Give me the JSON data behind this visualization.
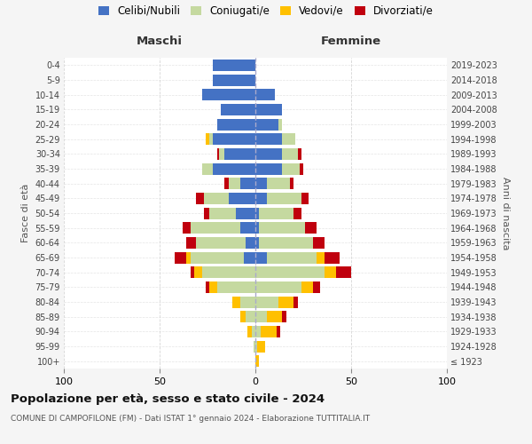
{
  "age_groups": [
    "100+",
    "95-99",
    "90-94",
    "85-89",
    "80-84",
    "75-79",
    "70-74",
    "65-69",
    "60-64",
    "55-59",
    "50-54",
    "45-49",
    "40-44",
    "35-39",
    "30-34",
    "25-29",
    "20-24",
    "15-19",
    "10-14",
    "5-9",
    "0-4"
  ],
  "birth_years": [
    "≤ 1923",
    "1924-1928",
    "1929-1933",
    "1934-1938",
    "1939-1943",
    "1944-1948",
    "1949-1953",
    "1954-1958",
    "1959-1963",
    "1964-1968",
    "1969-1973",
    "1974-1978",
    "1979-1983",
    "1984-1988",
    "1989-1993",
    "1994-1998",
    "1999-2003",
    "2004-2008",
    "2009-2013",
    "2014-2018",
    "2019-2023"
  ],
  "male_celibi": [
    0,
    0,
    0,
    0,
    0,
    0,
    0,
    6,
    5,
    8,
    10,
    14,
    8,
    22,
    16,
    22,
    20,
    18,
    28,
    22,
    22
  ],
  "male_coniugati": [
    0,
    1,
    2,
    5,
    8,
    20,
    28,
    28,
    26,
    26,
    14,
    13,
    6,
    6,
    3,
    2,
    0,
    0,
    0,
    0,
    0
  ],
  "male_vedovi": [
    0,
    0,
    2,
    3,
    4,
    4,
    4,
    2,
    0,
    0,
    0,
    0,
    0,
    0,
    0,
    2,
    0,
    0,
    0,
    0,
    0
  ],
  "male_divorziati": [
    0,
    0,
    0,
    0,
    0,
    2,
    2,
    6,
    5,
    4,
    3,
    4,
    2,
    0,
    1,
    0,
    0,
    0,
    0,
    0,
    0
  ],
  "female_celibi": [
    0,
    0,
    0,
    0,
    0,
    0,
    0,
    6,
    2,
    2,
    2,
    6,
    6,
    14,
    14,
    14,
    12,
    14,
    10,
    0,
    0
  ],
  "female_coniugati": [
    0,
    1,
    3,
    6,
    12,
    24,
    36,
    26,
    28,
    24,
    18,
    18,
    12,
    9,
    8,
    7,
    2,
    0,
    0,
    0,
    0
  ],
  "female_vedovi": [
    2,
    4,
    8,
    8,
    8,
    6,
    6,
    4,
    0,
    0,
    0,
    0,
    0,
    0,
    0,
    0,
    0,
    0,
    0,
    0,
    0
  ],
  "female_divorziati": [
    0,
    0,
    2,
    2,
    2,
    4,
    8,
    8,
    6,
    6,
    4,
    4,
    2,
    2,
    2,
    0,
    0,
    0,
    0,
    0,
    0
  ],
  "colors": {
    "celibi": "#4472c4",
    "coniugati": "#c5d9a0",
    "vedovi": "#ffc000",
    "divorziati": "#c0000e"
  },
  "title": "Popolazione per età, sesso e stato civile - 2024",
  "subtitle": "COMUNE DI CAMPOFILONE (FM) - Dati ISTAT 1° gennaio 2024 - Elaborazione TUTTITALIA.IT",
  "xlim": 100,
  "xlabel_left": "Maschi",
  "xlabel_right": "Femmine",
  "ylabel_left": "Fasce di età",
  "ylabel_right": "Anni di nascita",
  "legend_labels": [
    "Celibi/Nubili",
    "Coniugati/e",
    "Vedovi/e",
    "Divorziati/e"
  ],
  "bg_color": "#f5f5f5",
  "plot_bg_color": "#ffffff"
}
